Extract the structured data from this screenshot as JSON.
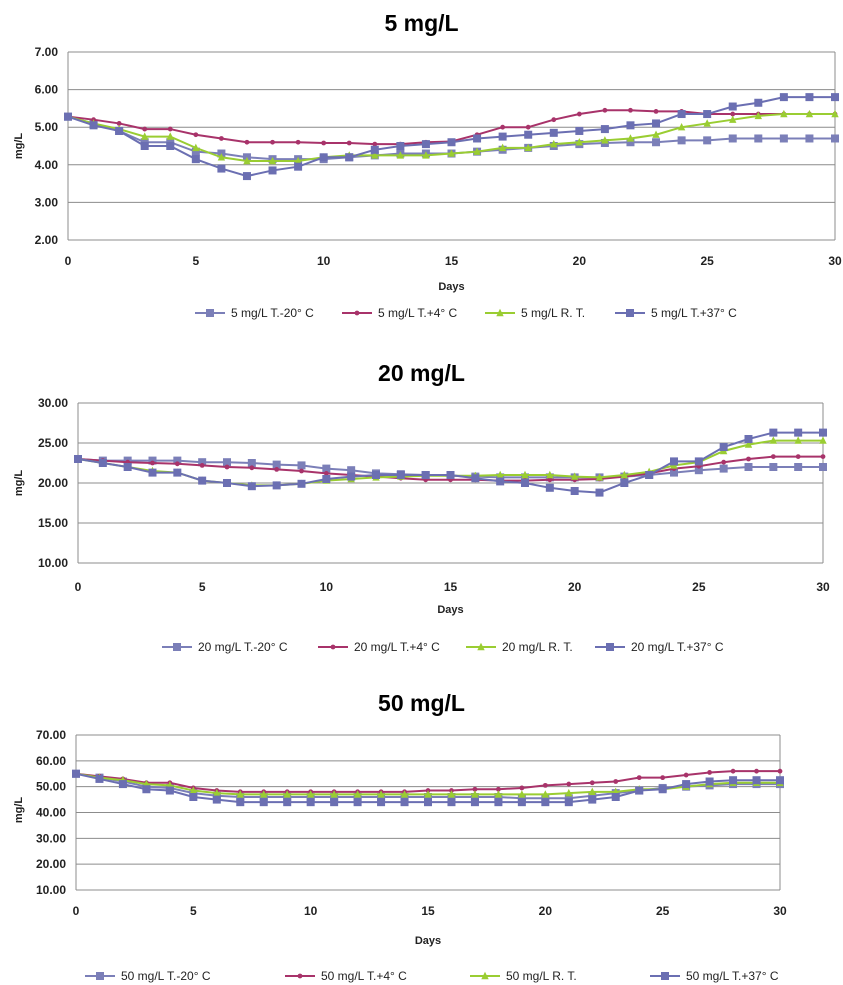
{
  "chart_data": [
    {
      "type": "line",
      "title": "5 mg/L",
      "xlabel": "Days",
      "ylabel": "mg/L",
      "xlim": [
        0,
        30
      ],
      "ylim": [
        2,
        7
      ],
      "x_ticks": [
        0,
        5,
        10,
        15,
        20,
        25,
        30
      ],
      "y_tick_labels": [
        "2.00",
        "3.00",
        "4.00",
        "5.00",
        "6.00",
        "7.00"
      ],
      "grid": "horizontal",
      "legend_position": "bottom",
      "x": [
        0,
        1,
        2,
        3,
        4,
        5,
        6,
        7,
        8,
        9,
        10,
        11,
        12,
        13,
        14,
        15,
        16,
        17,
        18,
        19,
        20,
        21,
        22,
        23,
        24,
        25,
        26,
        27,
        28,
        29,
        30
      ],
      "series": [
        {
          "name": "5 mg/L T.-20° C",
          "color": "#7b7fb8",
          "marker": "square",
          "values": [
            5.28,
            5.1,
            4.9,
            4.6,
            4.6,
            4.35,
            4.3,
            4.2,
            4.15,
            4.15,
            4.15,
            4.2,
            4.25,
            4.3,
            4.3,
            4.3,
            4.35,
            4.4,
            4.45,
            4.5,
            4.55,
            4.58,
            4.6,
            4.6,
            4.65,
            4.65,
            4.7,
            4.7,
            4.7,
            4.7,
            4.7
          ]
        },
        {
          "name": "5 mg/L T.+4° C",
          "color": "#a8336a",
          "marker": "diamond",
          "values": [
            5.28,
            5.2,
            5.1,
            4.95,
            4.95,
            4.8,
            4.7,
            4.6,
            4.6,
            4.6,
            4.58,
            4.58,
            4.55,
            4.55,
            4.6,
            4.62,
            4.8,
            5.0,
            5.0,
            5.2,
            5.35,
            5.45,
            5.45,
            5.42,
            5.42,
            5.35,
            5.35,
            5.35,
            5.35,
            5.35,
            5.35
          ]
        },
        {
          "name": "5 mg/L R. T.",
          "color": "#9acd32",
          "marker": "triangle",
          "values": [
            5.28,
            5.1,
            4.95,
            4.75,
            4.75,
            4.45,
            4.2,
            4.1,
            4.1,
            4.1,
            4.2,
            4.25,
            4.25,
            4.25,
            4.25,
            4.3,
            4.35,
            4.45,
            4.45,
            4.55,
            4.6,
            4.65,
            4.7,
            4.8,
            5.0,
            5.1,
            5.2,
            5.3,
            5.35,
            5.35,
            5.35
          ]
        },
        {
          "name": "5 mg/L T.+37° C",
          "color": "#6b6fb2",
          "marker": "square",
          "values": [
            5.28,
            5.05,
            4.9,
            4.5,
            4.5,
            4.15,
            3.9,
            3.7,
            3.85,
            3.95,
            4.2,
            4.2,
            4.4,
            4.5,
            4.55,
            4.6,
            4.7,
            4.75,
            4.8,
            4.85,
            4.9,
            4.95,
            5.05,
            5.1,
            5.35,
            5.35,
            5.55,
            5.65,
            5.8,
            5.8,
            5.8
          ]
        }
      ]
    },
    {
      "type": "line",
      "title": "20 mg/L",
      "xlabel": "Days",
      "ylabel": "mg/L",
      "xlim": [
        0,
        30
      ],
      "ylim": [
        10,
        30
      ],
      "x_ticks": [
        0,
        5,
        10,
        15,
        20,
        25,
        30
      ],
      "y_tick_labels": [
        "10.00",
        "15.00",
        "20.00",
        "25.00",
        "30.00"
      ],
      "grid": "horizontal",
      "legend_position": "bottom",
      "x": [
        0,
        1,
        2,
        3,
        4,
        5,
        6,
        7,
        8,
        9,
        10,
        11,
        12,
        13,
        14,
        15,
        16,
        17,
        18,
        19,
        20,
        21,
        22,
        23,
        24,
        25,
        26,
        27,
        28,
        29,
        30
      ],
      "series": [
        {
          "name": "20 mg/L T.-20° C",
          "color": "#7b7fb8",
          "marker": "square",
          "values": [
            23.0,
            22.8,
            22.8,
            22.8,
            22.8,
            22.6,
            22.6,
            22.5,
            22.3,
            22.2,
            21.8,
            21.6,
            21.2,
            21.1,
            21.0,
            20.9,
            20.8,
            20.7,
            20.7,
            20.7,
            20.7,
            20.7,
            20.8,
            21.0,
            21.3,
            21.6,
            21.8,
            22.0,
            22.0,
            22.0,
            22.0
          ]
        },
        {
          "name": "20 mg/L T.+4° C",
          "color": "#a8336a",
          "marker": "diamond",
          "values": [
            23.0,
            22.8,
            22.6,
            22.5,
            22.4,
            22.2,
            22.0,
            21.9,
            21.7,
            21.5,
            21.2,
            21.0,
            20.8,
            20.6,
            20.4,
            20.4,
            20.4,
            20.3,
            20.3,
            20.4,
            20.4,
            20.5,
            20.8,
            21.2,
            21.8,
            22.1,
            22.6,
            23.0,
            23.3,
            23.3,
            23.3
          ]
        },
        {
          "name": "20 mg/L R. T.",
          "color": "#9acd32",
          "marker": "triangle",
          "values": [
            23.0,
            22.5,
            22.0,
            21.5,
            21.3,
            20.3,
            20.0,
            19.7,
            19.7,
            19.9,
            20.3,
            20.5,
            20.7,
            20.8,
            20.9,
            20.9,
            20.9,
            21.0,
            21.0,
            21.0,
            20.8,
            20.7,
            21.0,
            21.4,
            22.2,
            22.6,
            24.0,
            24.8,
            25.3,
            25.3,
            25.3
          ]
        },
        {
          "name": "20 mg/L T.+37° C",
          "color": "#6b6fb2",
          "marker": "square",
          "values": [
            23.0,
            22.5,
            22.0,
            21.3,
            21.3,
            20.3,
            20.0,
            19.6,
            19.7,
            19.9,
            20.5,
            20.8,
            21.0,
            21.0,
            21.0,
            21.0,
            20.6,
            20.2,
            20.0,
            19.4,
            19.0,
            18.8,
            20.0,
            21.0,
            22.7,
            22.7,
            24.5,
            25.5,
            26.3,
            26.3,
            26.3
          ]
        }
      ]
    },
    {
      "type": "line",
      "title": "50 mg/L",
      "xlabel": "Days",
      "ylabel": "mg/L",
      "xlim": [
        0,
        30
      ],
      "ylim": [
        10,
        70
      ],
      "x_ticks": [
        0,
        5,
        10,
        15,
        20,
        25,
        30
      ],
      "y_tick_labels": [
        "10.00",
        "20.00",
        "30.00",
        "40.00",
        "50.00",
        "60.00",
        "70.00"
      ],
      "grid": "horizontal",
      "legend_position": "bottom",
      "x": [
        0,
        1,
        2,
        3,
        4,
        5,
        6,
        7,
        8,
        9,
        10,
        11,
        12,
        13,
        14,
        15,
        16,
        17,
        18,
        19,
        20,
        21,
        22,
        23,
        24,
        25,
        26,
        27,
        28,
        29,
        30
      ],
      "series": [
        {
          "name": "50 mg/L T.-20° C",
          "color": "#7b7fb8",
          "marker": "square",
          "values": [
            55.0,
            53.5,
            52.0,
            50.0,
            49.5,
            47.5,
            46.5,
            46.0,
            46.0,
            46.0,
            46.0,
            46.0,
            46.0,
            46.0,
            46.0,
            46.0,
            46.0,
            46.0,
            46.0,
            45.5,
            45.5,
            45.5,
            46.5,
            47.5,
            48.5,
            49.5,
            50.0,
            50.5,
            51.0,
            51.0,
            51.0
          ]
        },
        {
          "name": "50 mg/L T.+4° C",
          "color": "#a8336a",
          "marker": "diamond",
          "values": [
            55.0,
            54.0,
            53.0,
            51.5,
            51.5,
            49.5,
            48.5,
            48.0,
            48.0,
            48.0,
            48.0,
            48.0,
            48.0,
            48.0,
            48.0,
            48.5,
            48.5,
            49.0,
            49.0,
            49.5,
            50.5,
            51.0,
            51.5,
            52.0,
            53.5,
            53.5,
            54.5,
            55.5,
            56.0,
            56.0,
            56.0
          ]
        },
        {
          "name": "50 mg/L R. T.",
          "color": "#9acd32",
          "marker": "triangle",
          "values": [
            55.0,
            53.5,
            52.5,
            51.0,
            50.5,
            48.5,
            47.5,
            47.0,
            47.0,
            47.0,
            47.0,
            47.0,
            47.0,
            47.0,
            47.0,
            47.0,
            47.0,
            47.0,
            47.0,
            47.0,
            47.0,
            47.5,
            48.0,
            48.0,
            49.0,
            49.0,
            50.0,
            51.0,
            51.5,
            51.5,
            51.5
          ]
        },
        {
          "name": "50 mg/L T.+37° C",
          "color": "#6b6fb2",
          "marker": "square",
          "values": [
            55.0,
            53.0,
            51.0,
            49.0,
            48.5,
            46.0,
            45.0,
            44.0,
            44.0,
            44.0,
            44.0,
            44.0,
            44.0,
            44.0,
            44.0,
            44.0,
            44.0,
            44.0,
            44.0,
            44.0,
            44.0,
            44.0,
            45.0,
            46.0,
            48.5,
            49.0,
            51.0,
            52.0,
            52.5,
            52.5,
            52.5
          ]
        }
      ]
    }
  ]
}
